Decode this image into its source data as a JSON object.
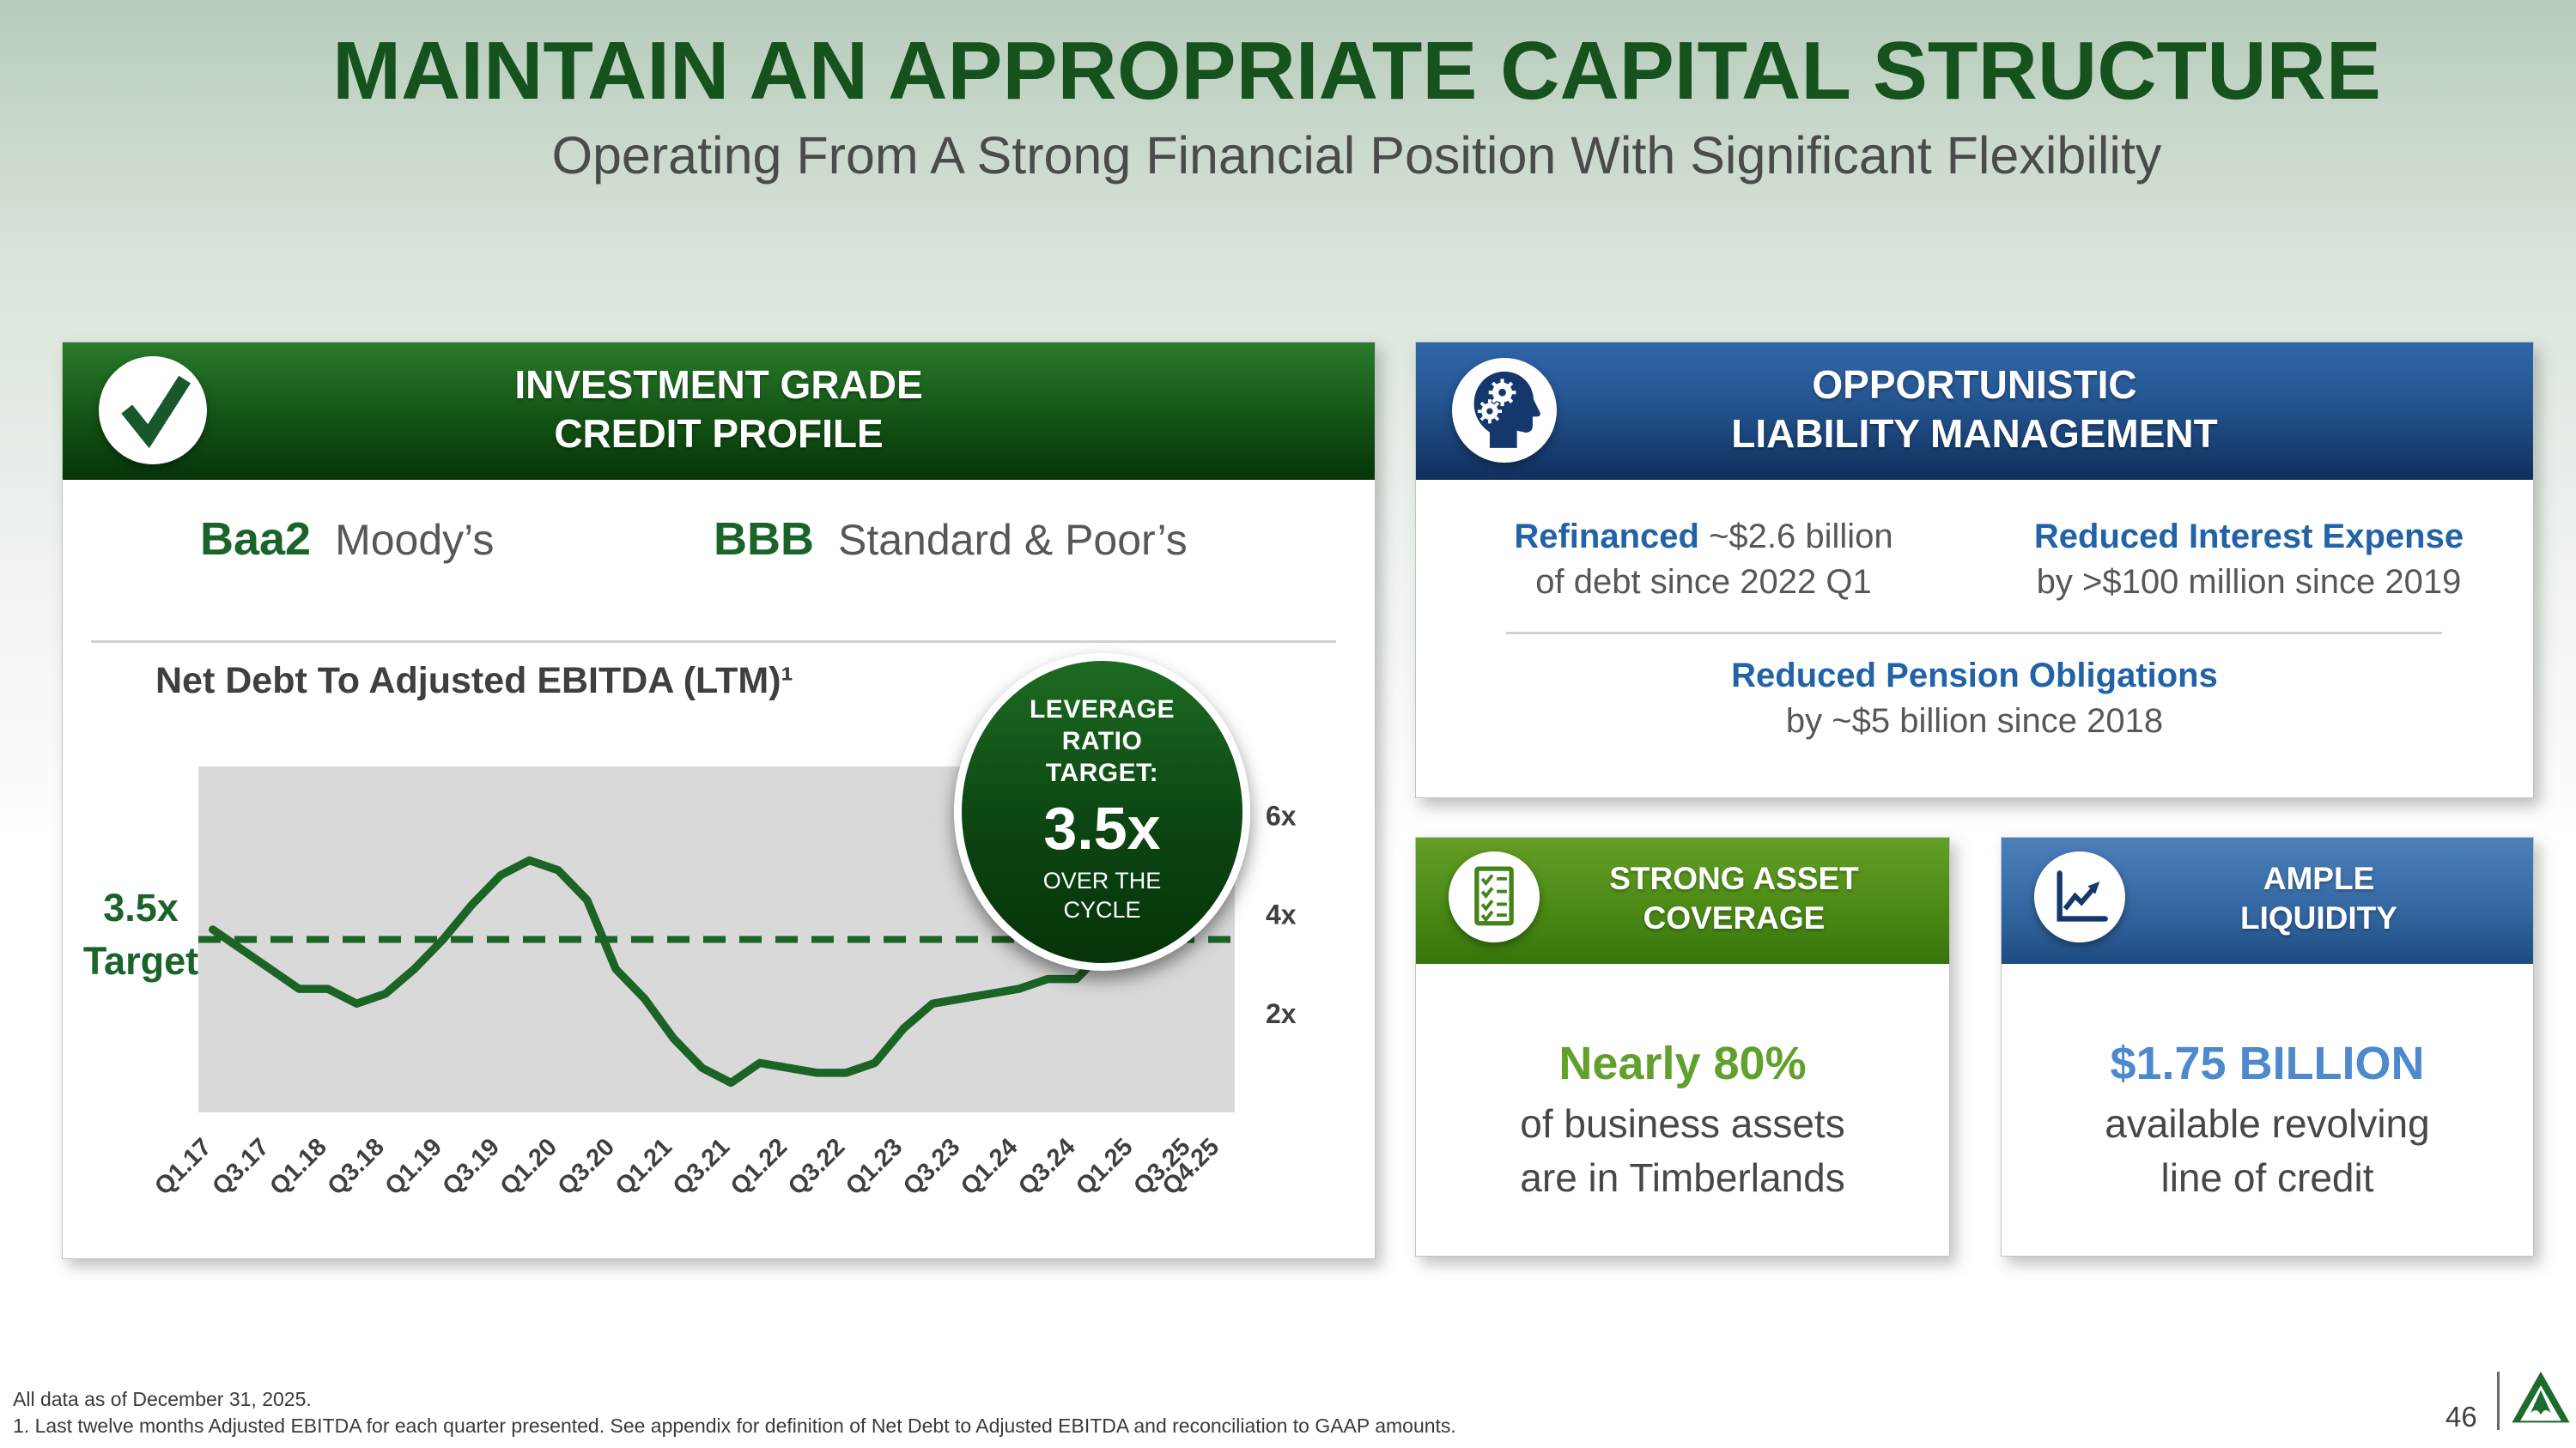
{
  "slide": {
    "title": "MAINTAIN AN APPROPRIATE CAPITAL STRUCTURE",
    "subtitle": "Operating From A Strong Financial Position With Significant Flexibility",
    "page_number": "46",
    "footnotes": [
      "All data as of December 31, 2025.",
      "1. Last twelve months Adjusted EBITDA for each quarter presented. See appendix for definition of Net Debt to Adjusted EBITDA and reconciliation to GAAP amounts."
    ]
  },
  "credit_panel": {
    "header_line1": "INVESTMENT GRADE",
    "header_line2": "CREDIT PROFILE",
    "header_icon": "check-icon",
    "ratings": [
      {
        "rating": "Baa2",
        "agency": "Moody’s"
      },
      {
        "rating": "BBB",
        "agency": "Standard & Poor’s"
      }
    ],
    "chart_title": "Net Debt To Adjusted EBITDA (LTM)¹",
    "target_label_line1": "3.5x",
    "target_label_line2": "Target",
    "badge": {
      "top_lines": [
        "LEVERAGE",
        "RATIO",
        "TARGET:"
      ],
      "value": "3.5x",
      "bottom_lines": [
        "OVER THE",
        "CYCLE"
      ]
    }
  },
  "chart_data": {
    "type": "line",
    "title": "Net Debt To Adjusted EBITDA (LTM), multiple of x",
    "x": [
      "Q1.17",
      "Q2.17",
      "Q3.17",
      "Q4.17",
      "Q1.18",
      "Q2.18",
      "Q3.18",
      "Q4.18",
      "Q1.19",
      "Q2.19",
      "Q3.19",
      "Q4.19",
      "Q1.20",
      "Q2.20",
      "Q3.20",
      "Q4.20",
      "Q1.21",
      "Q2.21",
      "Q3.21",
      "Q4.21",
      "Q1.22",
      "Q2.22",
      "Q3.22",
      "Q4.22",
      "Q1.23",
      "Q2.23",
      "Q3.23",
      "Q4.23",
      "Q1.24",
      "Q2.24",
      "Q3.24",
      "Q4.24",
      "Q1.25",
      "Q2.25",
      "Q3.25",
      "Q4.25"
    ],
    "values": [
      3.7,
      3.3,
      2.9,
      2.5,
      2.5,
      2.2,
      2.4,
      2.9,
      3.5,
      4.2,
      4.8,
      5.1,
      4.9,
      4.3,
      2.9,
      2.3,
      1.5,
      0.9,
      0.6,
      1.0,
      0.9,
      0.8,
      0.8,
      1.0,
      1.7,
      2.2,
      2.3,
      2.4,
      2.5,
      2.7,
      2.7,
      3.3,
      3.5,
      3.7,
      4.2,
      5.1
    ],
    "x_ticks": [
      {
        "i": 0,
        "label": "Q1.17"
      },
      {
        "i": 2,
        "label": "Q3.17"
      },
      {
        "i": 4,
        "label": "Q1.18"
      },
      {
        "i": 6,
        "label": "Q3.18"
      },
      {
        "i": 8,
        "label": "Q1.19"
      },
      {
        "i": 10,
        "label": "Q3.19"
      },
      {
        "i": 12,
        "label": "Q1.20"
      },
      {
        "i": 14,
        "label": "Q3.20"
      },
      {
        "i": 16,
        "label": "Q1.21"
      },
      {
        "i": 18,
        "label": "Q3.21"
      },
      {
        "i": 20,
        "label": "Q1.22"
      },
      {
        "i": 22,
        "label": "Q3.22"
      },
      {
        "i": 24,
        "label": "Q1.23"
      },
      {
        "i": 26,
        "label": "Q3.23"
      },
      {
        "i": 28,
        "label": "Q1.24"
      },
      {
        "i": 30,
        "label": "Q3.24"
      },
      {
        "i": 32,
        "label": "Q1.25"
      },
      {
        "i": 34,
        "label": "Q3.25"
      },
      {
        "i": 35,
        "label": "Q4.25"
      }
    ],
    "y_ticks": [
      {
        "value": 2,
        "label": "2x"
      },
      {
        "value": 4,
        "label": "4x"
      },
      {
        "value": 6,
        "label": "6x"
      }
    ],
    "ylim": [
      0,
      7
    ],
    "target_line": {
      "value": 3.5,
      "label": "3.5x Target",
      "style": "dashed"
    },
    "legend": "none",
    "grid": "off",
    "line_color": "#1b6426",
    "plot_bg": "#d9d9d9",
    "tick_color": "#3f3f3f"
  },
  "liability_panel": {
    "header_line1": "OPPORTUNISTIC",
    "header_line2": "LIABILITY MANAGEMENT",
    "header_icon": "head-gears-icon",
    "refinanced_lead": "Refinanced",
    "refinanced_rest": "~$2.6 billion",
    "refinanced_line2": "of debt since 2022 Q1",
    "interest_lead": "Reduced Interest Expense",
    "interest_line2": "by >$100 million since 2019",
    "pension_lead": "Reduced Pension Obligations",
    "pension_line2": "by ~$5 billion since 2018"
  },
  "asset_panel": {
    "header_line1": "STRONG ASSET",
    "header_line2": "COVERAGE",
    "header_icon": "checklist-icon",
    "highlight": "Nearly 80%",
    "line1": "of business assets",
    "line2": "are in Timberlands"
  },
  "liquidity_panel": {
    "header_line1": "AMPLE",
    "header_line2": "LIQUIDITY",
    "header_icon": "line-chart-icon",
    "highlight": "$1.75 BILLION",
    "line1": "available revolving",
    "line2": "line of credit"
  },
  "colors": {
    "title_green": "#15521e",
    "dark_green_header": "#135415",
    "blue_header": "#24548f",
    "light_green_header": "#4c8a16",
    "light_blue_header": "#3568a2",
    "accent_blue_text": "#2263a8",
    "accent_green_text": "#61a02c",
    "accent_light_blue_text": "#4d89cc",
    "body_gray_text": "#575757",
    "chart_line_green": "#1b6426",
    "plot_background": "#d9d9d9",
    "logo_green": "#1e6b2e"
  }
}
